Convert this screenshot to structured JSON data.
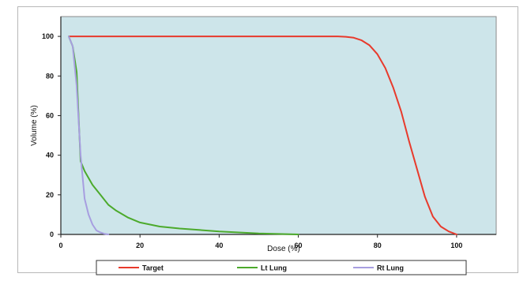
{
  "chart_data": {
    "type": "line",
    "title": "",
    "xlabel": "Dose (%)",
    "ylabel": "Volume (%)",
    "xlim": [
      0,
      110
    ],
    "ylim": [
      0,
      110
    ],
    "x_ticks": [
      "0",
      "20",
      "40",
      "60",
      "80",
      "100"
    ],
    "y_ticks": [
      "0",
      "20",
      "40",
      "60",
      "80",
      "100"
    ],
    "grid": false,
    "legend_position": "bottom",
    "plot_background": "#cde5ea",
    "series": [
      {
        "name": "Target",
        "color": "#e83a2c",
        "x": [
          2,
          10,
          30,
          50,
          70,
          72,
          74,
          76,
          78,
          80,
          82,
          84,
          86,
          88,
          90,
          92,
          94,
          96,
          98,
          100
        ],
        "y": [
          100,
          100,
          100,
          100,
          100,
          99.8,
          99.3,
          98,
          95.5,
          91,
          84,
          74,
          62,
          47,
          33,
          19,
          9,
          4,
          1.5,
          0
        ]
      },
      {
        "name": "Lt Lung",
        "color": "#4caa2c",
        "x": [
          2,
          3,
          4,
          5,
          6,
          8,
          10,
          12,
          14,
          17,
          20,
          25,
          30,
          40,
          50,
          60
        ],
        "y": [
          100,
          95,
          82,
          37,
          32,
          25,
          20,
          15,
          12,
          8.5,
          6,
          4,
          3,
          1.5,
          0.5,
          0
        ]
      },
      {
        "name": "Rt Lung",
        "color": "#a79ee0",
        "x": [
          2,
          3,
          4,
          5,
          6,
          7,
          8,
          9,
          10,
          11,
          12
        ],
        "y": [
          100,
          95,
          75,
          40,
          18,
          10,
          5,
          2,
          1,
          0.3,
          0
        ]
      }
    ]
  }
}
